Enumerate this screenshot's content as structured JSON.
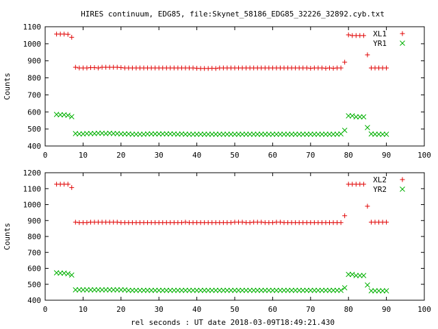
{
  "title": "HIRES continuum, EDG85, file:Skynet_58186_EDG85_32226_32892.cyb.txt",
  "colors": {
    "x_series": "#e00000",
    "y_series": "#00b000",
    "frame": "#000000"
  },
  "chart_data": [
    {
      "type": "scatter",
      "ylabel": "Counts",
      "xlabel": "",
      "xlim": [
        0,
        100
      ],
      "ylim": [
        400,
        1100
      ],
      "xticks": [
        "0",
        "10",
        "20",
        "30",
        "40",
        "50",
        "60",
        "70",
        "80",
        "90",
        "100"
      ],
      "yticks": [
        "400",
        "500",
        "600",
        "700",
        "800",
        "900",
        "1000",
        "1100"
      ],
      "legend_position": "top-right",
      "series": [
        {
          "name": "XL1",
          "marker": "plus",
          "color": "#e00000",
          "x": [
            3,
            4,
            5,
            6,
            7,
            8,
            9,
            10,
            11,
            12,
            13,
            14,
            15,
            16,
            17,
            18,
            19,
            20,
            21,
            22,
            23,
            24,
            25,
            26,
            27,
            28,
            29,
            30,
            31,
            32,
            33,
            34,
            35,
            36,
            37,
            38,
            39,
            40,
            41,
            42,
            43,
            44,
            45,
            46,
            47,
            48,
            49,
            50,
            51,
            52,
            53,
            54,
            55,
            56,
            57,
            58,
            59,
            60,
            61,
            62,
            63,
            64,
            65,
            66,
            67,
            68,
            69,
            70,
            71,
            72,
            73,
            74,
            75,
            76,
            77,
            78,
            79,
            80,
            81,
            82,
            83,
            84,
            85,
            86,
            87,
            88,
            89,
            90
          ],
          "y": [
            1057,
            1057,
            1057,
            1055,
            1038,
            862,
            858,
            858,
            858,
            860,
            860,
            858,
            862,
            862,
            862,
            862,
            862,
            860,
            858,
            858,
            858,
            858,
            858,
            858,
            858,
            858,
            858,
            858,
            858,
            858,
            858,
            858,
            858,
            858,
            858,
            858,
            858,
            856,
            855,
            855,
            855,
            856,
            855,
            858,
            858,
            858,
            858,
            858,
            858,
            858,
            858,
            858,
            858,
            858,
            858,
            858,
            858,
            858,
            858,
            858,
            858,
            858,
            858,
            858,
            858,
            858,
            858,
            856,
            858,
            858,
            858,
            856,
            858,
            856,
            858,
            858,
            892,
            1052,
            1048,
            1048,
            1048,
            1048,
            935,
            858,
            858,
            858,
            858,
            858
          ]
        },
        {
          "name": "YR1",
          "marker": "cross",
          "color": "#00b000",
          "x": [
            3,
            4,
            5,
            6,
            7,
            8,
            9,
            10,
            11,
            12,
            13,
            14,
            15,
            16,
            17,
            18,
            19,
            20,
            21,
            22,
            23,
            24,
            25,
            26,
            27,
            28,
            29,
            30,
            31,
            32,
            33,
            34,
            35,
            36,
            37,
            38,
            39,
            40,
            41,
            42,
            43,
            44,
            45,
            46,
            47,
            48,
            49,
            50,
            51,
            52,
            53,
            54,
            55,
            56,
            57,
            58,
            59,
            60,
            61,
            62,
            63,
            64,
            65,
            66,
            67,
            68,
            69,
            70,
            71,
            72,
            73,
            74,
            75,
            76,
            77,
            78,
            79,
            80,
            81,
            82,
            83,
            84,
            85,
            86,
            87,
            88,
            89,
            90
          ],
          "y": [
            585,
            583,
            583,
            580,
            572,
            473,
            471,
            471,
            473,
            473,
            473,
            475,
            475,
            473,
            475,
            473,
            473,
            471,
            471,
            471,
            469,
            469,
            469,
            469,
            471,
            471,
            471,
            471,
            471,
            471,
            471,
            471,
            469,
            471,
            469,
            469,
            469,
            469,
            469,
            469,
            469,
            469,
            469,
            469,
            469,
            469,
            469,
            469,
            469,
            469,
            469,
            469,
            469,
            469,
            469,
            469,
            469,
            469,
            469,
            469,
            469,
            469,
            469,
            469,
            469,
            469,
            469,
            469,
            469,
            469,
            469,
            469,
            469,
            469,
            469,
            471,
            492,
            577,
            577,
            571,
            571,
            571,
            508,
            471,
            469,
            469,
            469,
            469
          ]
        }
      ]
    },
    {
      "type": "scatter",
      "ylabel": "Counts",
      "xlabel": "rel seconds : UT date 2018-03-09T18:49:21.430",
      "xlim": [
        0,
        100
      ],
      "ylim": [
        400,
        1200
      ],
      "xticks": [
        "0",
        "10",
        "20",
        "30",
        "40",
        "50",
        "60",
        "70",
        "80",
        "90",
        "100"
      ],
      "yticks": [
        "400",
        "500",
        "600",
        "700",
        "800",
        "900",
        "1000",
        "1100",
        "1200"
      ],
      "legend_position": "top-right",
      "series": [
        {
          "name": "XL2",
          "marker": "plus",
          "color": "#e00000",
          "x": [
            3,
            4,
            5,
            6,
            7,
            8,
            9,
            10,
            11,
            12,
            13,
            14,
            15,
            16,
            17,
            18,
            19,
            20,
            21,
            22,
            23,
            24,
            25,
            26,
            27,
            28,
            29,
            30,
            31,
            32,
            33,
            34,
            35,
            36,
            37,
            38,
            39,
            40,
            41,
            42,
            43,
            44,
            45,
            46,
            47,
            48,
            49,
            50,
            51,
            52,
            53,
            54,
            55,
            56,
            57,
            58,
            59,
            60,
            61,
            62,
            63,
            64,
            65,
            66,
            67,
            68,
            69,
            70,
            71,
            72,
            73,
            74,
            75,
            76,
            77,
            78,
            79,
            80,
            81,
            82,
            83,
            84,
            85,
            86,
            87,
            88,
            89,
            90
          ],
          "y": [
            1128,
            1128,
            1128,
            1128,
            1107,
            890,
            887,
            887,
            887,
            890,
            890,
            890,
            890,
            890,
            890,
            890,
            890,
            887,
            887,
            887,
            887,
            887,
            887,
            887,
            887,
            887,
            887,
            887,
            887,
            887,
            887,
            887,
            887,
            887,
            890,
            887,
            887,
            887,
            887,
            887,
            887,
            887,
            887,
            887,
            887,
            887,
            887,
            890,
            890,
            890,
            887,
            887,
            890,
            890,
            890,
            887,
            887,
            887,
            890,
            890,
            887,
            887,
            887,
            887,
            887,
            887,
            887,
            887,
            887,
            887,
            887,
            887,
            887,
            887,
            887,
            887,
            930,
            1128,
            1128,
            1128,
            1128,
            1128,
            990,
            890,
            890,
            890,
            890,
            890
          ]
        },
        {
          "name": "YR2",
          "marker": "cross",
          "color": "#00b000",
          "x": [
            3,
            4,
            5,
            6,
            7,
            8,
            9,
            10,
            11,
            12,
            13,
            14,
            15,
            16,
            17,
            18,
            19,
            20,
            21,
            22,
            23,
            24,
            25,
            26,
            27,
            28,
            29,
            30,
            31,
            32,
            33,
            34,
            35,
            36,
            37,
            38,
            39,
            40,
            41,
            42,
            43,
            44,
            45,
            46,
            47,
            48,
            49,
            50,
            51,
            52,
            53,
            54,
            55,
            56,
            57,
            58,
            59,
            60,
            61,
            62,
            63,
            64,
            65,
            66,
            67,
            68,
            69,
            70,
            71,
            72,
            73,
            74,
            75,
            76,
            77,
            78,
            79,
            80,
            81,
            82,
            83,
            84,
            85,
            86,
            87,
            88,
            89,
            90
          ],
          "y": [
            572,
            570,
            570,
            566,
            558,
            465,
            465,
            465,
            465,
            465,
            465,
            465,
            465,
            465,
            465,
            465,
            465,
            465,
            465,
            462,
            462,
            462,
            462,
            462,
            462,
            462,
            462,
            462,
            462,
            462,
            462,
            462,
            462,
            462,
            462,
            462,
            462,
            462,
            462,
            462,
            462,
            462,
            462,
            462,
            462,
            462,
            462,
            462,
            462,
            462,
            462,
            462,
            462,
            462,
            462,
            462,
            462,
            462,
            462,
            462,
            462,
            462,
            462,
            462,
            462,
            462,
            462,
            462,
            462,
            462,
            462,
            462,
            462,
            462,
            462,
            462,
            478,
            562,
            562,
            555,
            555,
            555,
            495,
            459,
            459,
            459,
            459,
            459
          ]
        }
      ]
    }
  ]
}
